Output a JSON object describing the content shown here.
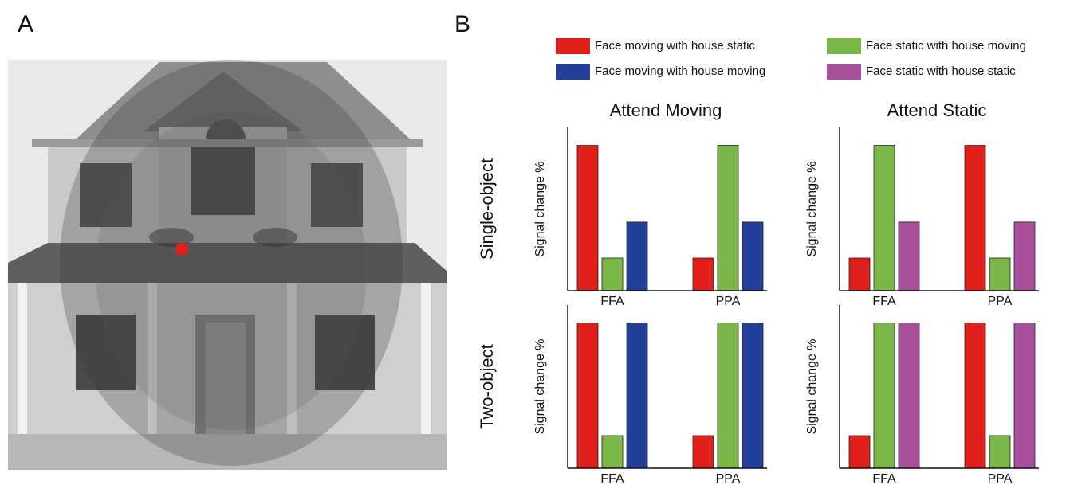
{
  "panel_labels": [
    "A",
    "B"
  ],
  "columns": [
    "Attend Moving",
    "Attend Static"
  ],
  "rows": [
    "Single-object",
    "Two-object"
  ],
  "chart_data": [
    {
      "type": "bar",
      "ylabel": "Signal change %",
      "categories": [
        "FFA",
        "PPA"
      ],
      "ylim": [
        0,
        1
      ],
      "series": [
        {
          "name": "Face moving with house static",
          "color": "#e0201b",
          "values": [
            0.89,
            0.2
          ]
        },
        {
          "name": "Face static with house moving",
          "color": "#7ab648",
          "values": [
            0.2,
            0.89
          ]
        },
        {
          "name": "Face moving with house moving",
          "color": "#22409a",
          "values": [
            0.42,
            0.42
          ]
        }
      ]
    },
    {
      "type": "bar",
      "ylabel": "Signal change %",
      "categories": [
        "FFA",
        "PPA"
      ],
      "ylim": [
        0,
        1
      ],
      "series": [
        {
          "color": "#e0201b",
          "values": [
            0.2,
            0.89
          ]
        },
        {
          "color": "#7ab648",
          "values": [
            0.89,
            0.2
          ]
        },
        {
          "name": "Face static with house static",
          "color": "#a9509c",
          "values": [
            0.42,
            0.42
          ]
        }
      ]
    },
    {
      "type": "bar",
      "ylabel": "Signal change %",
      "categories": [
        "FFA",
        "PPA"
      ],
      "ylim": [
        0,
        1
      ],
      "series": [
        {
          "color": "#e0201b",
          "values": [
            0.89,
            0.2
          ]
        },
        {
          "color": "#7ab648",
          "values": [
            0.2,
            0.89
          ]
        },
        {
          "color": "#22409a",
          "values": [
            0.89,
            0.89
          ]
        }
      ]
    },
    {
      "type": "bar",
      "ylabel": "Signal change %",
      "categories": [
        "FFA",
        "PPA"
      ],
      "ylim": [
        0,
        1
      ],
      "series": [
        {
          "color": "#e0201b",
          "values": [
            0.2,
            0.89
          ]
        },
        {
          "color": "#7ab648",
          "values": [
            0.89,
            0.2
          ]
        },
        {
          "color": "#a9509c",
          "values": [
            0.89,
            0.89
          ]
        }
      ]
    }
  ]
}
